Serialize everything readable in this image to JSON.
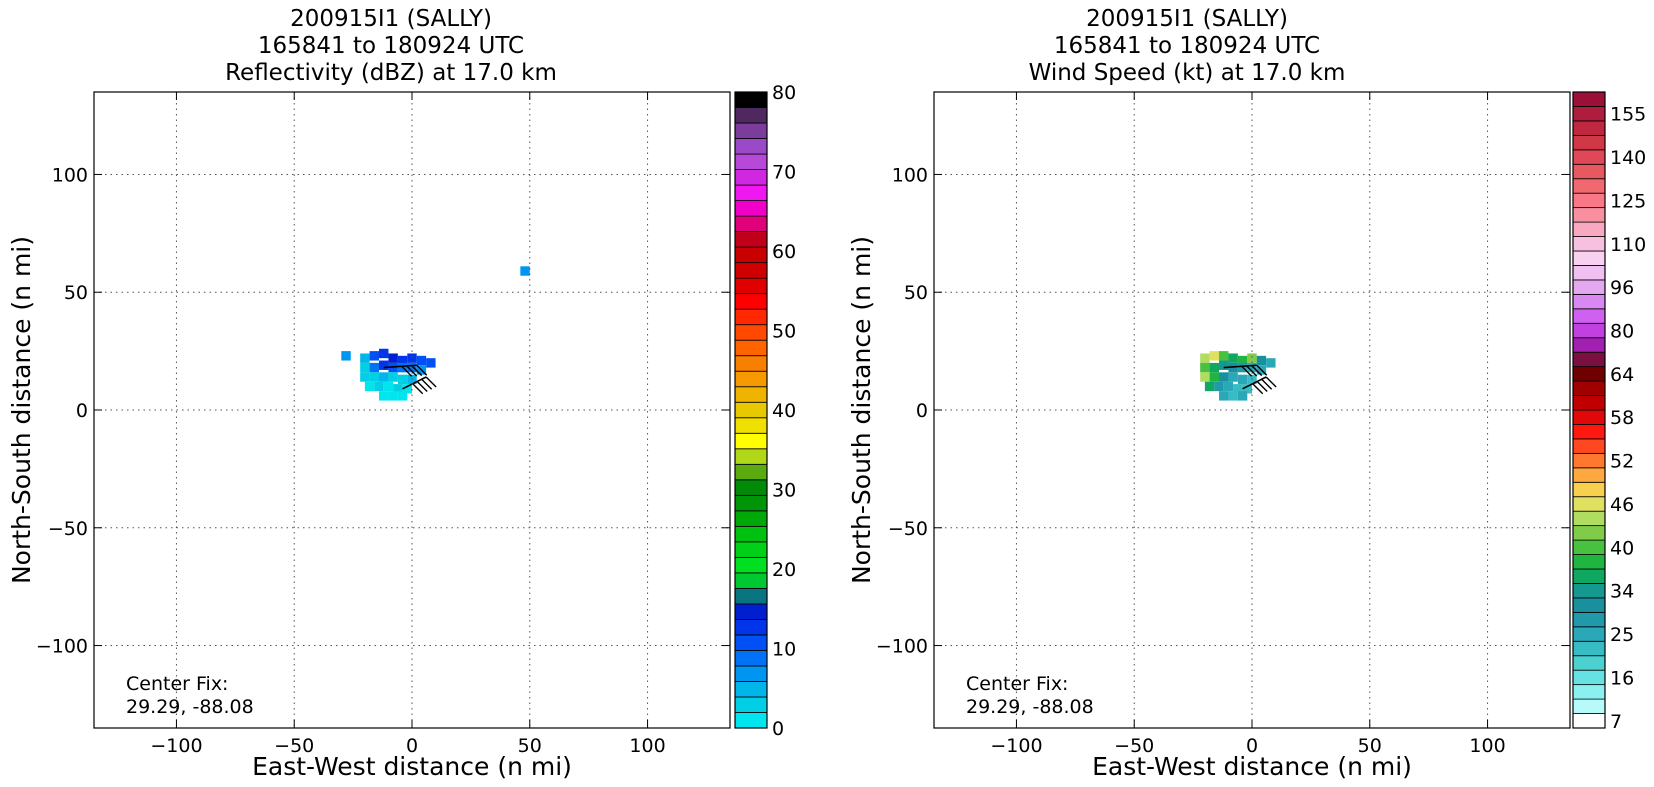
{
  "panels": [
    {
      "title_lines": [
        "200915I1 (SALLY)",
        "165841 to 180924 UTC",
        "Reflectivity (dBZ) at 17.0 km"
      ],
      "center_fix_label": "Center Fix:",
      "center_fix_value": "29.29, -88.08"
    },
    {
      "title_lines": [
        "200915I1 (SALLY)",
        "165841 to 180924 UTC",
        "Wind Speed (kt) at 17.0 km"
      ],
      "center_fix_label": "Center Fix:",
      "center_fix_value": "29.29, -88.08"
    }
  ],
  "chart_data": [
    {
      "type": "heatmap",
      "title": "200915I1 (SALLY) 165841 to 180924 UTC Reflectivity (dBZ) at 17.0 km",
      "xlabel": "East-West distance (n mi)",
      "ylabel": "North-South distance (n mi)",
      "xlim": [
        -135,
        135
      ],
      "ylim": [
        -135,
        135
      ],
      "xticks": [
        -100,
        -50,
        0,
        50,
        100
      ],
      "yticks": [
        -100,
        -50,
        0,
        50,
        100
      ],
      "grid": true,
      "colorbar": {
        "min": 0,
        "max": 80,
        "tick_values": [
          0,
          10,
          20,
          30,
          40,
          50,
          60,
          70,
          80
        ],
        "tick_labels": [
          "0",
          "10",
          "20",
          "30",
          "40",
          "50",
          "60",
          "70",
          "80"
        ],
        "colors": [
          "#00e5ee",
          "#00cfe5",
          "#00b5ea",
          "#0095f0",
          "#0072f5",
          "#0050f5",
          "#0035ea",
          "#0020d0",
          "#087580",
          "#00c830",
          "#00e020",
          "#00d018",
          "#00c010",
          "#00a808",
          "#009508",
          "#008a08",
          "#5aaa10",
          "#b0d818",
          "#ffff00",
          "#f0e000",
          "#e8c800",
          "#f0b400",
          "#f59a00",
          "#f88000",
          "#ff6400",
          "#ff4800",
          "#ff2800",
          "#ff0000",
          "#e00000",
          "#d00000",
          "#c80000",
          "#c0001a",
          "#e0007a",
          "#f000c8",
          "#f018f0",
          "#d028e0",
          "#b848d8",
          "#9a4ac8",
          "#7c3c9c",
          "#502860",
          "#000000"
        ]
      },
      "echo_cells": [
        {
          "x": -28,
          "y": 23,
          "dbz": 6
        },
        {
          "x": -20,
          "y": 22,
          "dbz": 4
        },
        {
          "x": -16,
          "y": 23,
          "dbz": 10
        },
        {
          "x": -12,
          "y": 24,
          "dbz": 12
        },
        {
          "x": -8,
          "y": 22,
          "dbz": 14
        },
        {
          "x": -4,
          "y": 21,
          "dbz": 13
        },
        {
          "x": 0,
          "y": 22,
          "dbz": 12
        },
        {
          "x": 4,
          "y": 21,
          "dbz": 11
        },
        {
          "x": 8,
          "y": 20,
          "dbz": 10
        },
        {
          "x": -20,
          "y": 18,
          "dbz": 3
        },
        {
          "x": -16,
          "y": 18,
          "dbz": 8
        },
        {
          "x": -12,
          "y": 19,
          "dbz": 12
        },
        {
          "x": -8,
          "y": 18,
          "dbz": 10
        },
        {
          "x": -4,
          "y": 18,
          "dbz": 8
        },
        {
          "x": 0,
          "y": 18,
          "dbz": 9
        },
        {
          "x": 4,
          "y": 17,
          "dbz": 7
        },
        {
          "x": -20,
          "y": 14,
          "dbz": 2
        },
        {
          "x": -16,
          "y": 14,
          "dbz": 3
        },
        {
          "x": -12,
          "y": 14,
          "dbz": 4
        },
        {
          "x": -8,
          "y": 14,
          "dbz": 3
        },
        {
          "x": -4,
          "y": 13,
          "dbz": 2
        },
        {
          "x": 0,
          "y": 13,
          "dbz": 5
        },
        {
          "x": -18,
          "y": 10,
          "dbz": 1
        },
        {
          "x": -14,
          "y": 10,
          "dbz": 2
        },
        {
          "x": -10,
          "y": 10,
          "dbz": 1
        },
        {
          "x": -6,
          "y": 9,
          "dbz": 2
        },
        {
          "x": -2,
          "y": 9,
          "dbz": 1
        },
        {
          "x": -12,
          "y": 6,
          "dbz": 1
        },
        {
          "x": -8,
          "y": 6,
          "dbz": 0
        },
        {
          "x": -4,
          "y": 6,
          "dbz": 1
        },
        {
          "x": 48,
          "y": 59,
          "dbz": 6
        }
      ]
    },
    {
      "type": "heatmap",
      "title": "200915I1 (SALLY) 165841 to 180924 UTC Wind Speed (kt) at 17.0 km",
      "xlabel": "East-West distance (n mi)",
      "ylabel": "North-South distance (n mi)",
      "xlim": [
        -135,
        135
      ],
      "ylim": [
        -135,
        135
      ],
      "xticks": [
        -100,
        -50,
        0,
        50,
        100
      ],
      "yticks": [
        -100,
        -50,
        0,
        50,
        100
      ],
      "grid": true,
      "colorbar": {
        "tick_labels": [
          "7",
          "16",
          "25",
          "34",
          "40",
          "46",
          "52",
          "58",
          "64",
          "80",
          "96",
          "110",
          "125",
          "140",
          "155"
        ],
        "tick_bin_index": [
          0,
          3,
          6,
          9,
          12,
          15,
          18,
          21,
          24,
          27,
          30,
          33,
          36,
          39,
          42
        ],
        "colors": [
          "#ffffff",
          "#b8fafa",
          "#8af0f0",
          "#66e2e2",
          "#4cd0d0",
          "#38bcc4",
          "#2aa8b8",
          "#209aaa",
          "#18909e",
          "#149890",
          "#10a860",
          "#20b440",
          "#48c040",
          "#80cc48",
          "#b0dc60",
          "#e0e060",
          "#f8d050",
          "#ffa840",
          "#ff7830",
          "#ff4820",
          "#ff1810",
          "#e00808",
          "#c00000",
          "#a00000",
          "#700000",
          "#7a1040",
          "#a020b0",
          "#c040e0",
          "#d060f0",
          "#d888f0",
          "#e4a8f0",
          "#f0c0f0",
          "#f8d0f0",
          "#f8c0e0",
          "#f8a8c0",
          "#f890a0",
          "#f87888",
          "#f06870",
          "#e85860",
          "#e04858",
          "#d03848",
          "#c02840",
          "#b01c3c",
          "#9c1038"
        ]
      },
      "wind_cells": [
        {
          "x": -20,
          "y": 22,
          "kt": 44
        },
        {
          "x": -16,
          "y": 23,
          "kt": 46
        },
        {
          "x": -12,
          "y": 23,
          "kt": 40
        },
        {
          "x": -8,
          "y": 22,
          "kt": 36
        },
        {
          "x": -4,
          "y": 21,
          "kt": 38
        },
        {
          "x": 0,
          "y": 22,
          "kt": 42
        },
        {
          "x": 4,
          "y": 21,
          "kt": 30
        },
        {
          "x": 8,
          "y": 20,
          "kt": 26
        },
        {
          "x": -20,
          "y": 18,
          "kt": 40
        },
        {
          "x": -16,
          "y": 18,
          "kt": 36
        },
        {
          "x": -12,
          "y": 19,
          "kt": 34
        },
        {
          "x": -8,
          "y": 18,
          "kt": 30
        },
        {
          "x": -4,
          "y": 18,
          "kt": 28
        },
        {
          "x": 0,
          "y": 18,
          "kt": 26
        },
        {
          "x": 4,
          "y": 17,
          "kt": 24
        },
        {
          "x": -20,
          "y": 14,
          "kt": 44
        },
        {
          "x": -16,
          "y": 14,
          "kt": 38
        },
        {
          "x": -12,
          "y": 14,
          "kt": 32
        },
        {
          "x": -8,
          "y": 14,
          "kt": 26
        },
        {
          "x": -4,
          "y": 13,
          "kt": 24
        },
        {
          "x": 0,
          "y": 13,
          "kt": 22
        },
        {
          "x": -18,
          "y": 10,
          "kt": 36
        },
        {
          "x": -14,
          "y": 10,
          "kt": 28
        },
        {
          "x": -10,
          "y": 10,
          "kt": 24
        },
        {
          "x": -6,
          "y": 9,
          "kt": 22
        },
        {
          "x": -2,
          "y": 9,
          "kt": 21
        },
        {
          "x": -12,
          "y": 6,
          "kt": 24
        },
        {
          "x": -8,
          "y": 6,
          "kt": 22
        },
        {
          "x": -4,
          "y": 6,
          "kt": 25
        }
      ],
      "wind_barbs": [
        {
          "x": -12,
          "y": 18,
          "to_x": 2,
          "to_y": 19
        },
        {
          "x": -4,
          "y": 9,
          "to_x": 6,
          "to_y": 14
        }
      ]
    }
  ]
}
